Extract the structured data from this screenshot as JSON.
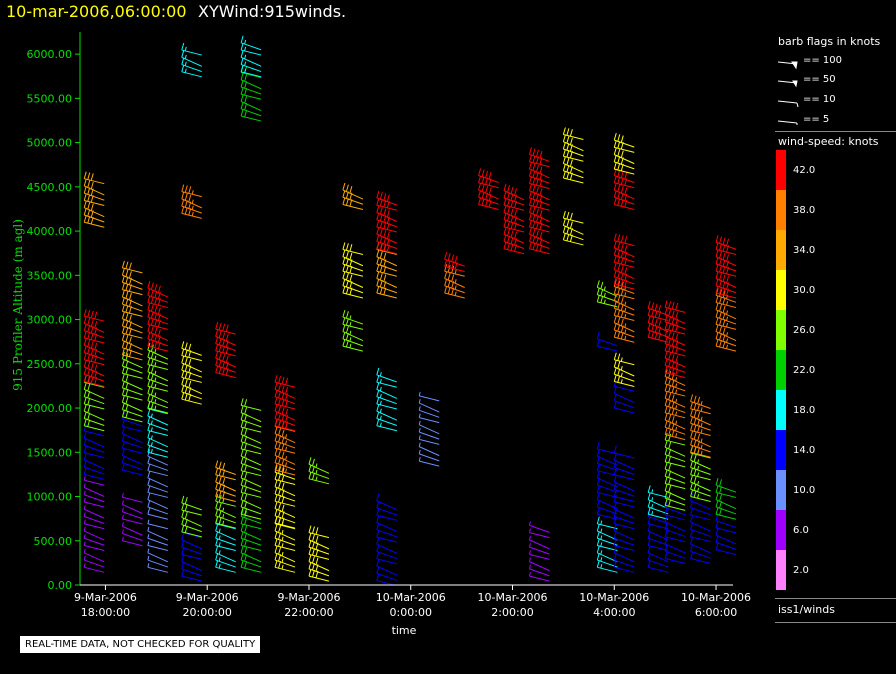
{
  "header": {
    "time": "10-mar-2006,06:00:00",
    "product": "XYWind:915winds."
  },
  "notice": "REAL-TIME DATA, NOT CHECKED FOR QUALITY",
  "legend": {
    "barb_title": "barb flags in knots",
    "barbs": [
      "== 100",
      "== 50",
      "== 10",
      "== 5"
    ],
    "speed_title": "wind-speed: knots",
    "speed_labels": [
      "42.0",
      "38.0",
      "34.0",
      "30.0",
      "26.0",
      "22.0",
      "18.0",
      "14.0",
      "10.0",
      "6.0",
      "2.0"
    ],
    "speed_colors": [
      "#ff0000",
      "#ff8000",
      "#ffaa00",
      "#ffff00",
      "#80ff00",
      "#00d000",
      "#00ffff",
      "#0000ff",
      "#6a8fff",
      "#a000ff",
      "#ff80ff"
    ],
    "footer": "iss1/winds"
  },
  "chart_data": {
    "type": "scatter",
    "title": "10-mar-2006,06:00:00  XYWind:915winds.",
    "xlabel": "time",
    "ylabel": "915 Profiler Altitude (m agl)",
    "xlim": [
      "2006-03-09T17:30:00",
      "2006-03-10T06:20:00"
    ],
    "ylim": [
      0,
      6250
    ],
    "yticks": [
      "0.00",
      "500.00",
      "1000.00",
      "1500.00",
      "2000.00",
      "2500.00",
      "3000.00",
      "3500.00",
      "4000.00",
      "4500.00",
      "5000.00",
      "5500.00",
      "6000.00"
    ],
    "xticks": [
      [
        "9-Mar-2006",
        "18:00:00"
      ],
      [
        "9-Mar-2006",
        "20:00:00"
      ],
      [
        "9-Mar-2006",
        "22:00:00"
      ],
      [
        "10-Mar-2006",
        "0:00:00"
      ],
      [
        "10-Mar-2006",
        "2:00:00"
      ],
      [
        "10-Mar-2006",
        "4:00:00"
      ],
      [
        "10-Mar-2006",
        "6:00:00"
      ]
    ],
    "colorbar": {
      "label": "wind-speed: knots",
      "range": [
        0,
        44
      ]
    },
    "profiles": [
      {
        "t": "2006-03-09T17:35:00",
        "segments": [
          {
            "from": 200,
            "to": 1200,
            "speed": 5
          },
          {
            "from": 1250,
            "to": 1800,
            "speed": 14
          },
          {
            "from": 1800,
            "to": 2300,
            "speed": 24
          },
          {
            "from": 2300,
            "to": 3100,
            "speed": 40
          },
          {
            "from": 4100,
            "to": 4600,
            "speed": 34
          }
        ]
      },
      {
        "t": "2006-03-09T18:20:00",
        "segments": [
          {
            "from": 500,
            "to": 1000,
            "speed": 6
          },
          {
            "from": 1300,
            "to": 1900,
            "speed": 13
          },
          {
            "from": 1900,
            "to": 2600,
            "speed": 24
          },
          {
            "from": 2600,
            "to": 3600,
            "speed": 34
          }
        ]
      },
      {
        "t": "2006-03-09T18:50:00",
        "segments": [
          {
            "from": 200,
            "to": 700,
            "speed": 8
          },
          {
            "from": 800,
            "to": 1500,
            "speed": 10
          },
          {
            "from": 1500,
            "to": 2000,
            "speed": 17
          },
          {
            "from": 2000,
            "to": 2700,
            "speed": 26
          },
          {
            "from": 2700,
            "to": 3400,
            "speed": 40
          }
        ]
      },
      {
        "t": "2006-03-09T19:30:00",
        "segments": [
          {
            "from": 100,
            "to": 600,
            "speed": 12
          },
          {
            "from": 600,
            "to": 1000,
            "speed": 24
          },
          {
            "from": 2100,
            "to": 2700,
            "speed": 30
          },
          {
            "from": 4200,
            "to": 4500,
            "speed": 38
          },
          {
            "from": 5800,
            "to": 6100,
            "speed": 18
          }
        ]
      },
      {
        "t": "2006-03-09T20:10:00",
        "segments": [
          {
            "from": 200,
            "to": 700,
            "speed": 18
          },
          {
            "from": 700,
            "to": 1000,
            "speed": 26
          },
          {
            "from": 1000,
            "to": 1400,
            "speed": 34
          },
          {
            "from": 2400,
            "to": 2900,
            "speed": 42
          }
        ]
      },
      {
        "t": "2006-03-09T20:40:00",
        "segments": [
          {
            "from": 200,
            "to": 800,
            "speed": 22
          },
          {
            "from": 800,
            "to": 2100,
            "speed": 24
          },
          {
            "from": 5300,
            "to": 5800,
            "speed": 22
          },
          {
            "from": 5800,
            "to": 6200,
            "speed": 18
          }
        ]
      },
      {
        "t": "2006-03-09T21:20:00",
        "segments": [
          {
            "from": 200,
            "to": 700,
            "speed": 29
          },
          {
            "from": 700,
            "to": 1300,
            "speed": 30
          },
          {
            "from": 1300,
            "to": 1800,
            "speed": 38
          },
          {
            "from": 1800,
            "to": 2300,
            "speed": 42
          }
        ]
      },
      {
        "t": "2006-03-09T22:00:00",
        "segments": [
          {
            "from": 100,
            "to": 600,
            "speed": 30
          },
          {
            "from": 1200,
            "to": 1400,
            "speed": 26
          }
        ]
      },
      {
        "t": "2006-03-09T22:40:00",
        "segments": [
          {
            "from": 2700,
            "to": 3100,
            "speed": 26
          },
          {
            "from": 3300,
            "to": 3800,
            "speed": 30
          },
          {
            "from": 4300,
            "to": 4500,
            "speed": 34
          }
        ]
      },
      {
        "t": "2006-03-09T23:20:00",
        "segments": [
          {
            "from": 50,
            "to": 1000,
            "speed": 12
          },
          {
            "from": 1800,
            "to": 2400,
            "speed": 18
          },
          {
            "from": 3300,
            "to": 3800,
            "speed": 34
          },
          {
            "from": 3800,
            "to": 4400,
            "speed": 42
          }
        ]
      },
      {
        "t": "2006-03-10T00:10:00",
        "segments": [
          {
            "from": 1400,
            "to": 2200,
            "speed": 8
          }
        ]
      },
      {
        "t": "2006-03-10T00:40:00",
        "segments": [
          {
            "from": 3300,
            "to": 3600,
            "speed": 38
          },
          {
            "from": 3600,
            "to": 3700,
            "speed": 42
          }
        ]
      },
      {
        "t": "2006-03-10T01:20:00",
        "segments": [
          {
            "from": 4300,
            "to": 4700,
            "speed": 42
          }
        ]
      },
      {
        "t": "2006-03-10T01:50:00",
        "segments": [
          {
            "from": 3800,
            "to": 4500,
            "speed": 42
          }
        ]
      },
      {
        "t": "2006-03-10T02:20:00",
        "segments": [
          {
            "from": 100,
            "to": 700,
            "speed": 6
          },
          {
            "from": 3800,
            "to": 4900,
            "speed": 42
          }
        ]
      },
      {
        "t": "2006-03-10T03:00:00",
        "segments": [
          {
            "from": 3900,
            "to": 4200,
            "speed": 30
          },
          {
            "from": 4600,
            "to": 5100,
            "speed": 30
          }
        ]
      },
      {
        "t": "2006-03-10T03:40:00",
        "segments": [
          {
            "from": 200,
            "to": 700,
            "speed": 16
          },
          {
            "from": 800,
            "to": 1600,
            "speed": 14
          },
          {
            "from": 2700,
            "to": 2800,
            "speed": 14
          },
          {
            "from": 3200,
            "to": 3400,
            "speed": 26
          }
        ]
      },
      {
        "t": "2006-03-10T04:00:00",
        "segments": [
          {
            "from": 200,
            "to": 1000,
            "speed": 13
          },
          {
            "from": 1000,
            "to": 1500,
            "speed": 12
          },
          {
            "from": 2000,
            "to": 2300,
            "speed": 14
          },
          {
            "from": 2300,
            "to": 2600,
            "speed": 28
          },
          {
            "from": 2800,
            "to": 3400,
            "speed": 38
          },
          {
            "from": 3400,
            "to": 3900,
            "speed": 42
          },
          {
            "from": 4300,
            "to": 4700,
            "speed": 42
          },
          {
            "from": 4700,
            "to": 5100,
            "speed": 30
          }
        ]
      },
      {
        "t": "2006-03-10T04:40:00",
        "segments": [
          {
            "from": 200,
            "to": 800,
            "speed": 14
          },
          {
            "from": 800,
            "to": 1100,
            "speed": 16
          },
          {
            "from": 2800,
            "to": 3200,
            "speed": 42
          }
        ]
      },
      {
        "t": "2006-03-10T05:00:00",
        "segments": [
          {
            "from": 300,
            "to": 900,
            "speed": 12
          },
          {
            "from": 900,
            "to": 1700,
            "speed": 24
          },
          {
            "from": 1700,
            "to": 2400,
            "speed": 36
          },
          {
            "from": 2400,
            "to": 3200,
            "speed": 42
          }
        ]
      },
      {
        "t": "2006-03-10T05:30:00",
        "segments": [
          {
            "from": 300,
            "to": 1000,
            "speed": 14
          },
          {
            "from": 1000,
            "to": 1500,
            "speed": 26
          },
          {
            "from": 1500,
            "to": 2100,
            "speed": 36
          }
        ]
      },
      {
        "t": "2006-03-10T06:00:00",
        "segments": [
          {
            "from": 400,
            "to": 800,
            "speed": 14
          },
          {
            "from": 800,
            "to": 1200,
            "speed": 22
          },
          {
            "from": 2700,
            "to": 3300,
            "speed": 38
          },
          {
            "from": 3300,
            "to": 3900,
            "speed": 40
          }
        ]
      }
    ]
  }
}
